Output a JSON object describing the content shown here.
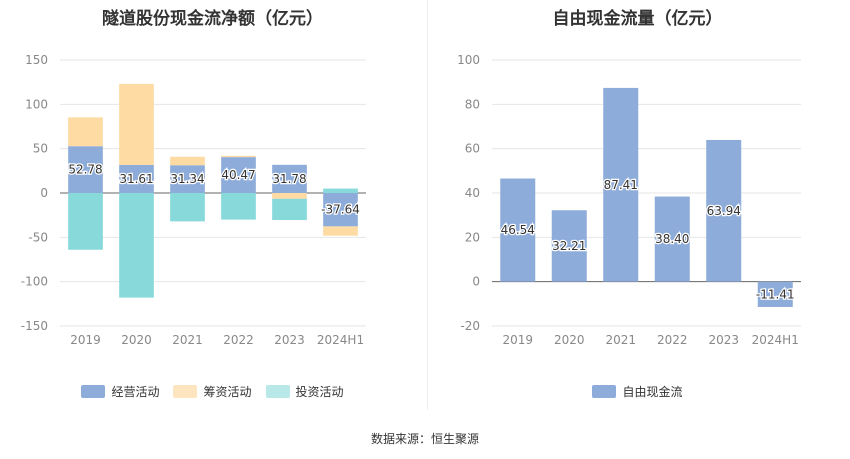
{
  "source_note": "数据来源：恒生聚源",
  "chart_data": [
    {
      "type": "bar",
      "stacked": true,
      "title": "隧道股份现金流净额（亿元）",
      "categories": [
        "2019",
        "2020",
        "2021",
        "2022",
        "2023",
        "2024H1"
      ],
      "ylim": [
        -150,
        150
      ],
      "yticks": [
        150,
        100,
        50,
        0,
        -50,
        -100,
        -150
      ],
      "grid": true,
      "legend_position": "bottom",
      "series": [
        {
          "name": "经营活动",
          "color": "#8eacd9",
          "values": [
            52.78,
            31.61,
            31.34,
            40.47,
            31.78,
            -37.64
          ],
          "labels": [
            "52.78",
            "31.61",
            "31.34",
            "40.47",
            "31.78",
            "-37.64"
          ]
        },
        {
          "name": "筹资活动",
          "color": "#fddba3",
          "values": [
            32.5,
            91.5,
            9.5,
            1.5,
            -6.5,
            -10.5
          ]
        },
        {
          "name": "投资活动",
          "color": "#88d9da",
          "values": [
            -64,
            -118,
            -32,
            -30,
            -24,
            5
          ]
        }
      ]
    },
    {
      "type": "bar",
      "title": "自由现金流量（亿元）",
      "categories": [
        "2019",
        "2020",
        "2021",
        "2022",
        "2023",
        "2024H1"
      ],
      "ylim": [
        -20,
        100
      ],
      "yticks": [
        100,
        80,
        60,
        40,
        20,
        0,
        -20
      ],
      "grid": true,
      "legend_position": "bottom",
      "series": [
        {
          "name": "自由现金流",
          "color": "#8eacd9",
          "values": [
            46.54,
            32.21,
            87.41,
            38.4,
            63.94,
            -11.41
          ],
          "labels": [
            "46.54",
            "32.21",
            "87.41",
            "38.40",
            "63.94",
            "-11.41"
          ]
        }
      ]
    }
  ]
}
